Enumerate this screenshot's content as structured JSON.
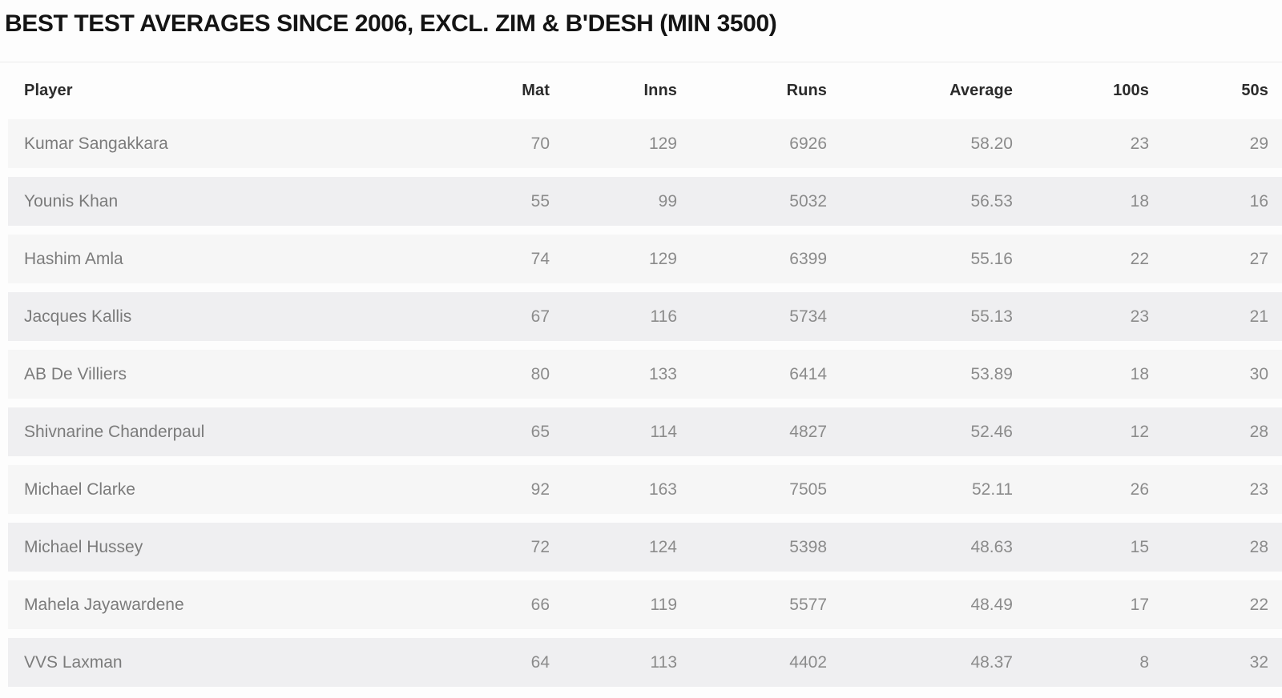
{
  "title": "BEST TEST AVERAGES SINCE 2006, EXCL. ZIM & B'DESH (MIN 3500)",
  "chart_data": {
    "type": "table",
    "title": "BEST TEST AVERAGES SINCE 2006, EXCL. ZIM & B'DESH (MIN 3500)",
    "columns": [
      "Player",
      "Mat",
      "Inns",
      "Runs",
      "Average",
      "100s",
      "50s"
    ],
    "rows": [
      [
        "Kumar Sangakkara",
        "70",
        "129",
        "6926",
        "58.20",
        "23",
        "29"
      ],
      [
        "Younis Khan",
        "55",
        "99",
        "5032",
        "56.53",
        "18",
        "16"
      ],
      [
        "Hashim Amla",
        "74",
        "129",
        "6399",
        "55.16",
        "22",
        "27"
      ],
      [
        "Jacques Kallis",
        "67",
        "116",
        "5734",
        "55.13",
        "23",
        "21"
      ],
      [
        "AB De Villiers",
        "80",
        "133",
        "6414",
        "53.89",
        "18",
        "30"
      ],
      [
        "Shivnarine Chanderpaul",
        "65",
        "114",
        "4827",
        "52.46",
        "12",
        "28"
      ],
      [
        "Michael Clarke",
        "92",
        "163",
        "7505",
        "52.11",
        "26",
        "23"
      ],
      [
        "Michael Hussey",
        "72",
        "124",
        "5398",
        "48.63",
        "15",
        "28"
      ],
      [
        "Mahela Jayawardene",
        "66",
        "119",
        "5577",
        "48.49",
        "17",
        "22"
      ],
      [
        "VVS Laxman",
        "64",
        "113",
        "4402",
        "48.37",
        "8",
        "32"
      ]
    ],
    "layout": {
      "row_band_colors": [
        "#f6f6f6",
        "#efeff1"
      ],
      "background": "#fdfdfd",
      "numeric_alignment": "right"
    }
  }
}
